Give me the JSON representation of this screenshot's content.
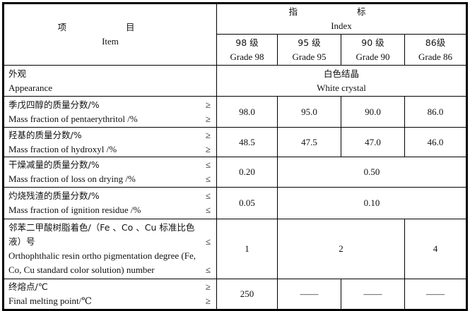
{
  "header": {
    "item_cn": "项 目",
    "item_en": "Item",
    "index_cn": "指 标",
    "index_en": "Index",
    "grades": [
      {
        "cn": "98 级",
        "en": "Grade 98"
      },
      {
        "cn": "95 级",
        "en": "Grade 95"
      },
      {
        "cn": "90 级",
        "en": "Grade 90"
      },
      {
        "cn": "86级",
        "en": "Grade 86"
      }
    ]
  },
  "rows": [
    {
      "cn": "外观",
      "en": "Appearance",
      "value_cn": "白色结晶",
      "value_en": "White crystal"
    },
    {
      "cn": "季戊四醇的质量分数/%",
      "en": "Mass fraction of pentaerythritol /%",
      "op": "≥",
      "values": [
        "98.0",
        "95.0",
        "90.0",
        "86.0"
      ]
    },
    {
      "cn": "羟基的质量分数/%",
      "en": "Mass fraction of hydroxyl /%",
      "op": "≥",
      "values": [
        "48.5",
        "47.5",
        "47.0",
        "46.0"
      ]
    },
    {
      "cn": "干燥减量的质量分数/%",
      "en": "Mass fraction of loss on drying /%",
      "op": "≤",
      "values": [
        "0.20",
        "0.50"
      ]
    },
    {
      "cn": "灼烧残渣的质量分数/%",
      "en": "Mass fraction of ignition residue /%",
      "op": "≤",
      "values": [
        "0.05",
        "0.10"
      ]
    },
    {
      "cn1": "邻苯二甲酸树脂着色/（Fe 、Co 、Cu 标准比色",
      "cn2": "液）号",
      "en1": "Orthophthalic resin ortho pigmentation degree (Fe,",
      "en2": "Co, Cu standard color solution) number",
      "op": "≤",
      "values": [
        "1",
        "2",
        "4"
      ]
    },
    {
      "cn": "终熔点/℃",
      "en": "Final melting point/℃",
      "op": "≥",
      "values": [
        "250",
        "——",
        "——",
        "——"
      ]
    }
  ]
}
